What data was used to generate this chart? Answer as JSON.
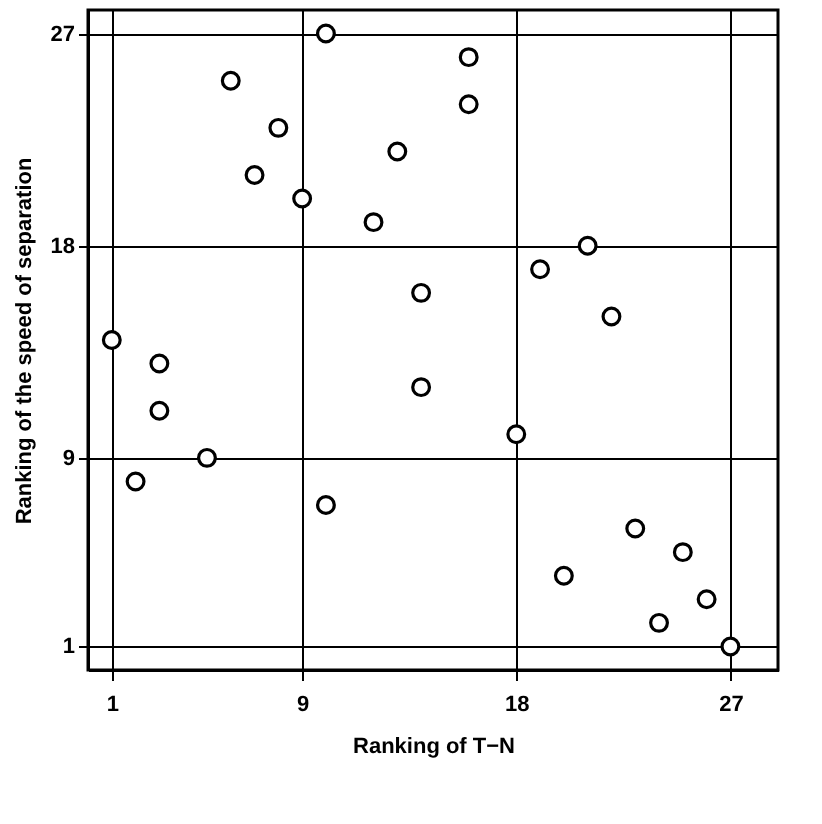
{
  "chart_data": {
    "type": "scatter",
    "xlabel": "Ranking of T−N",
    "ylabel": "Ranking of the speed of separation",
    "x": [
      1,
      2,
      3,
      3,
      5,
      6,
      10,
      8,
      7,
      9,
      12,
      13,
      14,
      16,
      16,
      21,
      19,
      22,
      10,
      14,
      18,
      23,
      25,
      20,
      26,
      24,
      27
    ],
    "series": [
      {
        "color": "#000000",
        "values": [
          14,
          8,
          13,
          11,
          9,
          25,
          27,
          23,
          21,
          20,
          19,
          22,
          16,
          26,
          24,
          18,
          17,
          15,
          7,
          12,
          10,
          6,
          5,
          4,
          3,
          2,
          1
        ]
      }
    ],
    "xlim": [
      0,
      29
    ],
    "ylim": [
      0,
      28
    ],
    "xticks": [
      1,
      9,
      18,
      27
    ],
    "yticks": [
      1,
      9,
      18,
      27
    ],
    "grid": true,
    "marker": "circle"
  }
}
